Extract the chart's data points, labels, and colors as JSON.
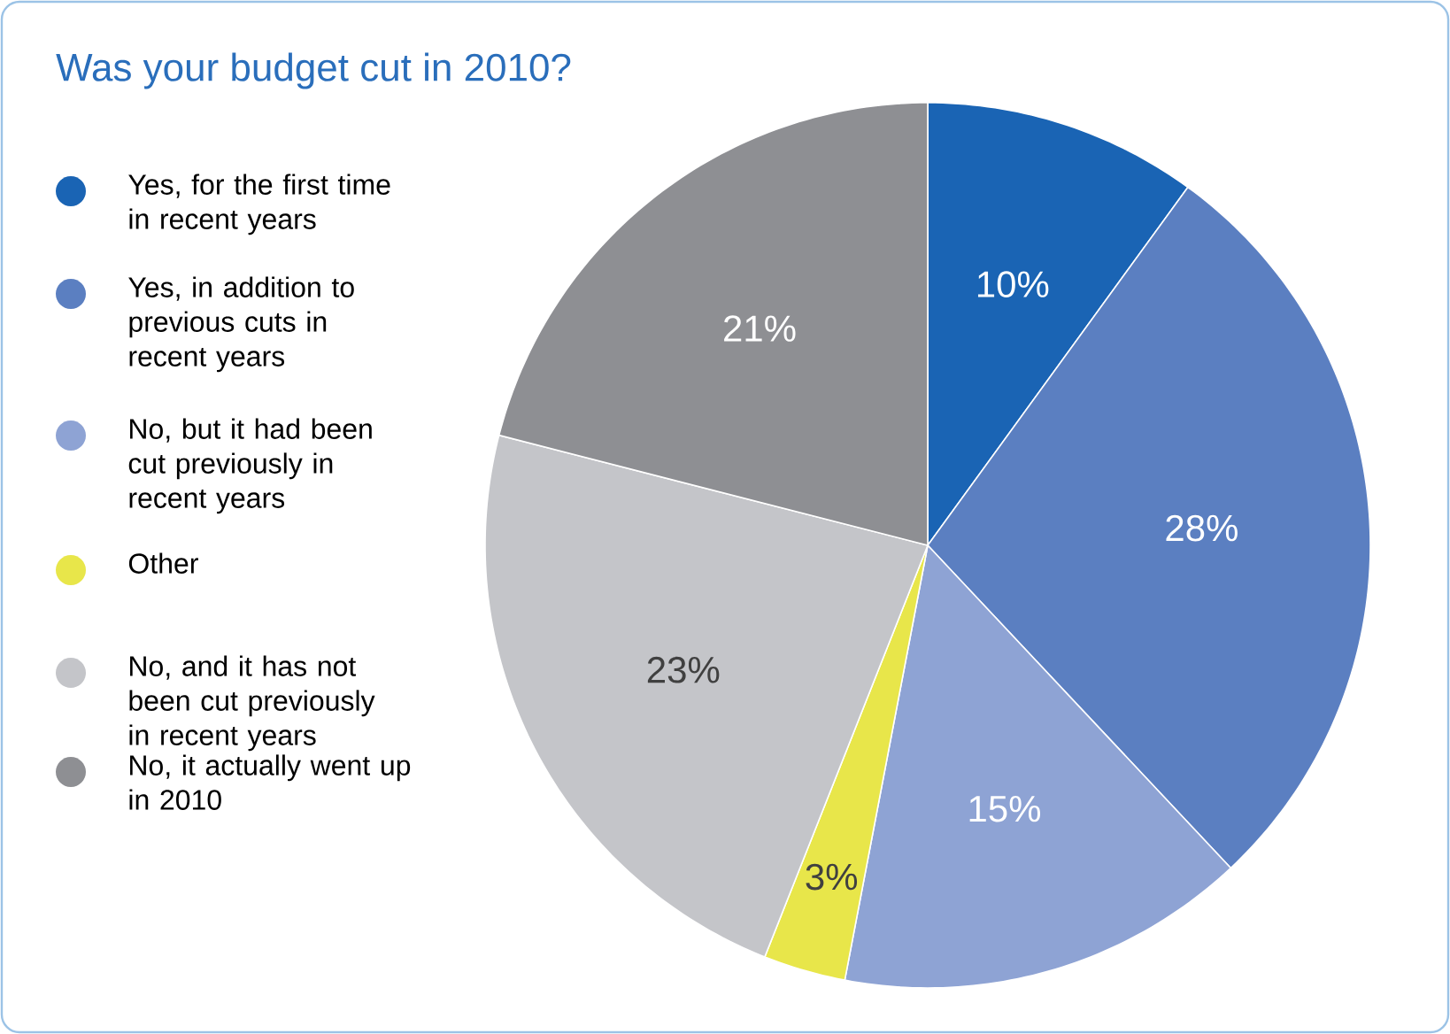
{
  "chart_data": {
    "type": "pie",
    "title": "Was your budget cut in 2010?",
    "categories": [
      "Yes, for the first time in recent years",
      "Yes, in addition to previous cuts in recent years",
      "No, but it had been cut previously in recent years",
      "Other",
      "No, and it has not been cut previously in recent years",
      "No, it actually went up in 2010"
    ],
    "values": [
      10,
      28,
      15,
      3,
      23,
      21
    ],
    "colors": [
      "#1a64b4",
      "#5b7fc1",
      "#8ea3d4",
      "#e8e64a",
      "#c4c5c9",
      "#8e8f93"
    ],
    "value_labels": [
      "10%",
      "28%",
      "15%",
      "3%",
      "23%",
      "21%"
    ],
    "legend": "left"
  }
}
